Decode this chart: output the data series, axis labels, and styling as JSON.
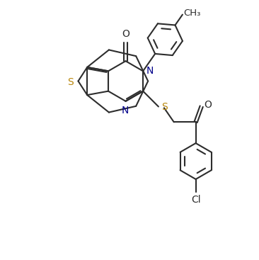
{
  "background_color": "#ffffff",
  "line_color": "#2d2d2d",
  "label_color": "#2d2d2d",
  "S_color": "#b8860b",
  "N_color": "#00008b",
  "O_color": "#2d2d2d",
  "Cl_color": "#2d2d2d",
  "line_width": 1.5,
  "font_size": 10,
  "xlim": [
    0,
    10
  ],
  "ylim": [
    0,
    10
  ]
}
